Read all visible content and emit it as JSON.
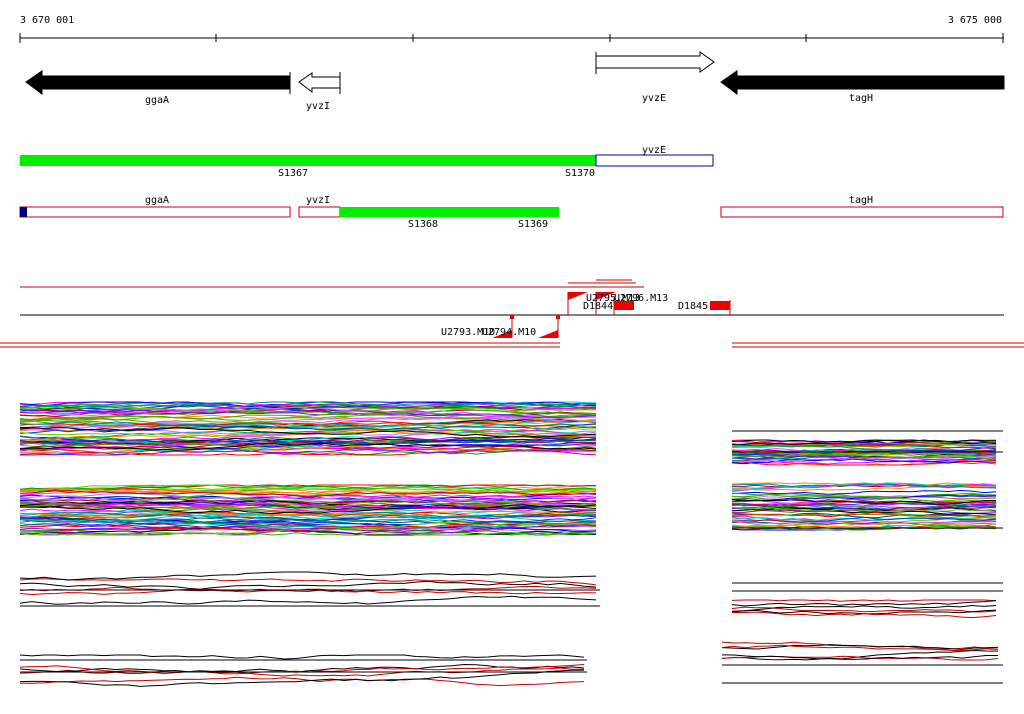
{
  "ruler": {
    "start_label": "3 670 001",
    "end_label": "3 675 000"
  },
  "genes": [
    {
      "name": "ggaA",
      "strand": "-",
      "fill": "#000000"
    },
    {
      "name": "yvzI",
      "strand": "-",
      "fill": "#ffffff"
    },
    {
      "name": "yvzE",
      "strand": "+",
      "fill": "#ffffff"
    },
    {
      "name": "tagH",
      "strand": "-",
      "fill": "#000000"
    }
  ],
  "segments_row1": [
    {
      "label": "S1367",
      "color": "#00ee00"
    },
    {
      "label": "S1370",
      "color": "#00ee00"
    },
    {
      "label": "yvzE",
      "color": "#0000aa"
    }
  ],
  "segments_row2": [
    {
      "label": "ggaA",
      "color": "#cc0000"
    },
    {
      "label": "yvzI",
      "color": "#cc0000"
    },
    {
      "label": "S1368",
      "color": "#00ee00"
    },
    {
      "label": "S1369",
      "color": "#00ee00"
    },
    {
      "label": "tagH",
      "color": "#cc0000"
    }
  ],
  "features": [
    {
      "label": "U2795.M13"
    },
    {
      "label": "U2796.M13"
    },
    {
      "label": "D1844"
    },
    {
      "label": "D1845"
    },
    {
      "label": "U2793.M10"
    },
    {
      "label": "U2794.M10"
    }
  ],
  "colors": {
    "arrow_black": "#000000",
    "segment_green": "#00ee00",
    "segment_red_outline": "#cc0000",
    "segment_blue_outline": "#0000aa",
    "feature_red": "#ee0000"
  }
}
